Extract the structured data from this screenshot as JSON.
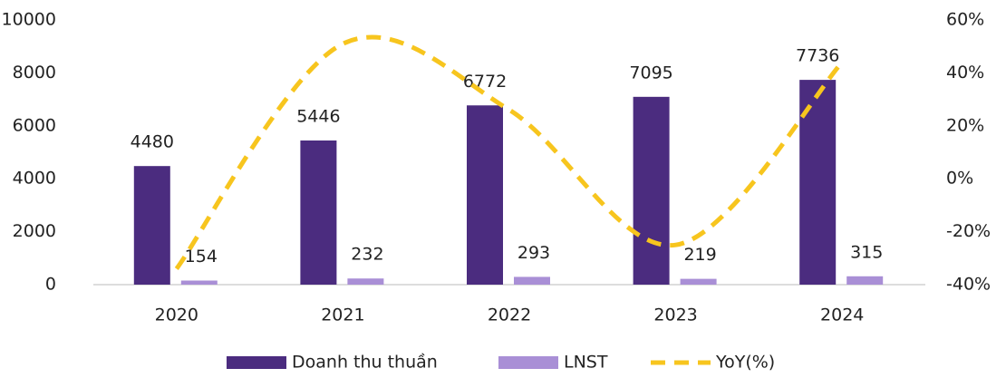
{
  "chart_data": {
    "type": "bar_line",
    "categories": [
      "2020",
      "2021",
      "2022",
      "2023",
      "2024"
    ],
    "series": [
      {
        "name": "Doanh thu thuần",
        "color": "#4b2c7f",
        "type": "bar",
        "values": [
          4480,
          5446,
          6772,
          7095,
          7736
        ]
      },
      {
        "name": "LNST",
        "color": "#a98fd6",
        "type": "bar",
        "values": [
          154,
          232,
          293,
          219,
          315
        ]
      },
      {
        "name": "YoY(%)",
        "color": "#f7c51e",
        "type": "line",
        "axis": "y2",
        "values": [
          -34,
          51,
          26,
          -25,
          44
        ]
      }
    ],
    "ylim": [
      0,
      10000
    ],
    "yticks": [
      0,
      2000,
      4000,
      6000,
      8000,
      10000
    ],
    "y2lim": [
      -40,
      60
    ],
    "y2ticks": [
      {
        "value": -40,
        "label": "-40%"
      },
      {
        "value": -20,
        "label": "-20%"
      },
      {
        "value": 0,
        "label": "0%"
      },
      {
        "value": 20,
        "label": "20%"
      },
      {
        "value": 40,
        "label": "40%"
      },
      {
        "value": 60,
        "label": "60%"
      }
    ],
    "legend": "bottom",
    "grid": false
  }
}
